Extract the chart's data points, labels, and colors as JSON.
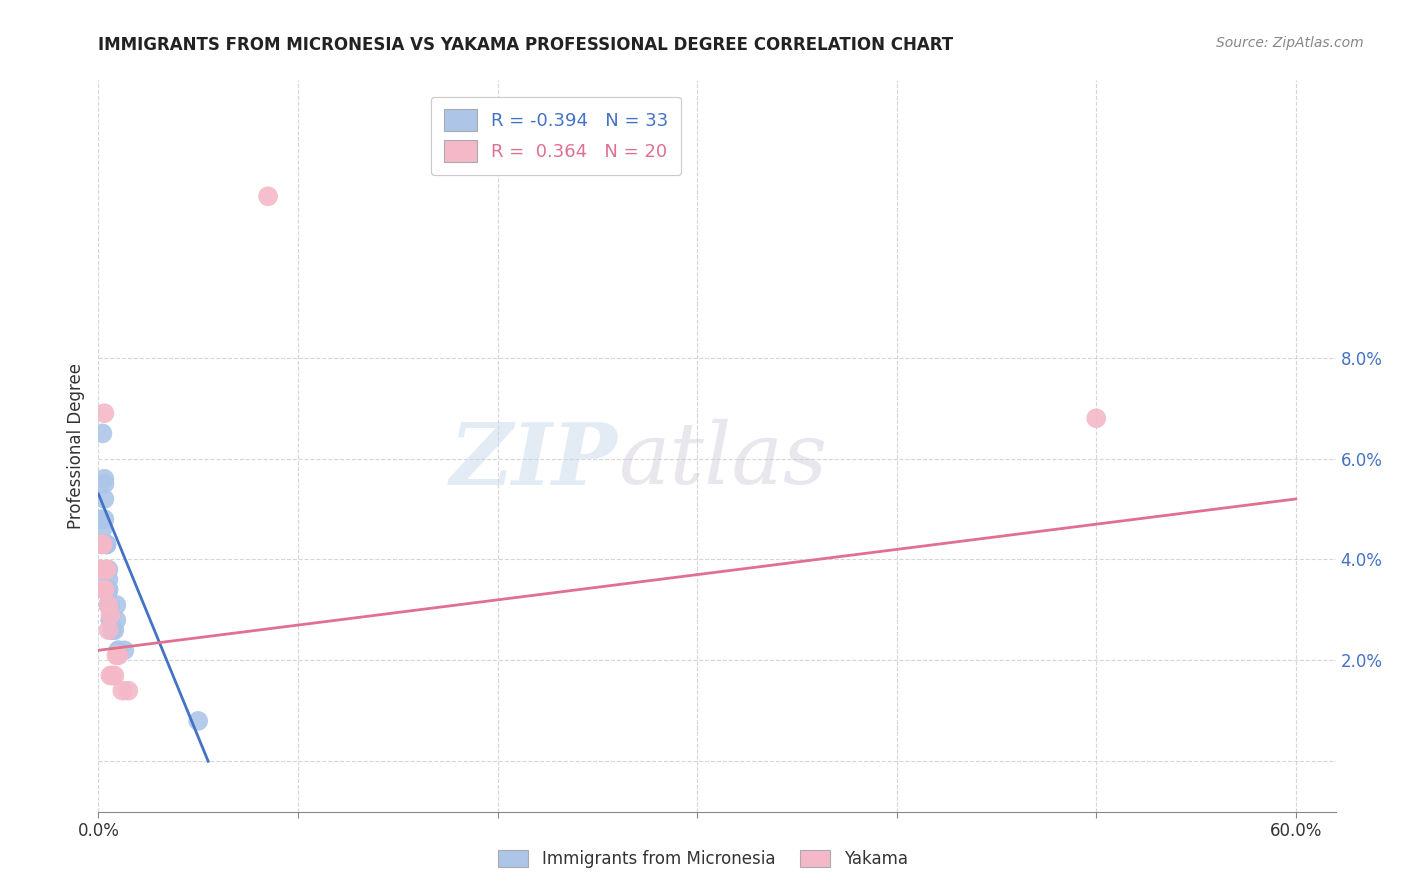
{
  "title": "IMMIGRANTS FROM MICRONESIA VS YAKAMA PROFESSIONAL DEGREE CORRELATION CHART",
  "source": "Source: ZipAtlas.com",
  "ylabel": "Professional Degree",
  "blue_R": -0.394,
  "blue_N": 33,
  "pink_R": 0.364,
  "pink_N": 20,
  "blue_color": "#adc6e8",
  "pink_color": "#f5b8c8",
  "blue_line_color": "#4472c4",
  "pink_line_color": "#e07090",
  "legend_label_blue": "Immigrants from Micronesia",
  "legend_label_pink": "Yakama",
  "watermark_zip": "ZIP",
  "watermark_atlas": "atlas",
  "blue_points_x": [
    0.001,
    0.001,
    0.002,
    0.002,
    0.002,
    0.003,
    0.003,
    0.003,
    0.003,
    0.004,
    0.004,
    0.004,
    0.004,
    0.004,
    0.005,
    0.005,
    0.005,
    0.005,
    0.005,
    0.005,
    0.005,
    0.006,
    0.006,
    0.006,
    0.007,
    0.007,
    0.008,
    0.009,
    0.009,
    0.01,
    0.01,
    0.013,
    0.05
  ],
  "blue_points_y": [
    0.048,
    0.043,
    0.046,
    0.038,
    0.065,
    0.056,
    0.055,
    0.052,
    0.048,
    0.043,
    0.043,
    0.043,
    0.038,
    0.043,
    0.038,
    0.034,
    0.031,
    0.034,
    0.034,
    0.036,
    0.031,
    0.031,
    0.028,
    0.028,
    0.026,
    0.026,
    0.026,
    0.031,
    0.028,
    0.022,
    0.022,
    0.022,
    0.008
  ],
  "pink_points_x": [
    0.001,
    0.002,
    0.002,
    0.003,
    0.003,
    0.003,
    0.004,
    0.004,
    0.005,
    0.005,
    0.006,
    0.006,
    0.007,
    0.008,
    0.009,
    0.01,
    0.012,
    0.015,
    0.085,
    0.5
  ],
  "pink_points_y": [
    0.038,
    0.043,
    0.043,
    0.069,
    0.034,
    0.034,
    0.038,
    0.038,
    0.031,
    0.026,
    0.029,
    0.017,
    0.017,
    0.017,
    0.021,
    0.021,
    0.014,
    0.014,
    0.112,
    0.068
  ],
  "blue_line_x": [
    0.0,
    0.055
  ],
  "blue_line_y": [
    0.053,
    0.0
  ],
  "pink_line_x": [
    0.0,
    0.6
  ],
  "pink_line_y": [
    0.022,
    0.052
  ],
  "xlim": [
    0.0,
    0.62
  ],
  "ylim": [
    -0.01,
    0.135
  ],
  "x_ticks": [
    0.0,
    0.1,
    0.2,
    0.3,
    0.4,
    0.5,
    0.6
  ],
  "y_ticks": [
    0.0,
    0.02,
    0.04,
    0.06,
    0.08
  ],
  "y_tick_labels": [
    "",
    "2.0%",
    "4.0%",
    "6.0%",
    "8.0%"
  ]
}
